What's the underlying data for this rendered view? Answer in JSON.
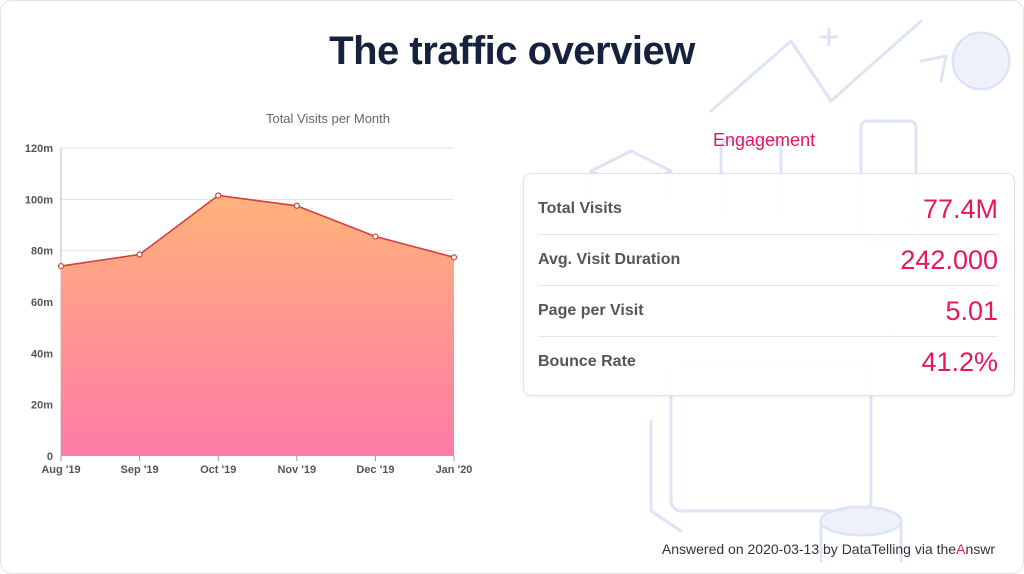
{
  "title": "The traffic overview",
  "chart_data": {
    "type": "area",
    "title": "Total Visits per Month",
    "categories": [
      "Aug '19",
      "Sep '19",
      "Oct '19",
      "Nov '19",
      "Dec '19",
      "Jan '20"
    ],
    "series": [
      {
        "values": [
          74,
          78.5,
          101.5,
          97.5,
          85.5,
          77.4
        ]
      }
    ],
    "yticks": [
      "0",
      "20m",
      "40m",
      "60m",
      "80m",
      "100m",
      "120m"
    ],
    "ylim": [
      0,
      120
    ],
    "ylabel": "",
    "xlabel": "",
    "grid": true,
    "colors": {
      "line": "#d2413f",
      "fill_top": "#ffb27a",
      "fill_bottom": "#ff7ba6"
    }
  },
  "engagement": {
    "title": "Engagement",
    "metrics": [
      {
        "label": "Total Visits",
        "value": "77.4M"
      },
      {
        "label": "Avg. Visit Duration",
        "value": "242.000"
      },
      {
        "label": "Page per Visit",
        "value": "5.01"
      },
      {
        "label": "Bounce Rate",
        "value": "41.2%"
      }
    ]
  },
  "footer": {
    "prefix": "Answered on 2020-03-13 by DataTelling via the",
    "brand_a": "A",
    "brand_rest": "nswr"
  },
  "colors": {
    "accent": "#e8175d",
    "title": "#16213d"
  }
}
